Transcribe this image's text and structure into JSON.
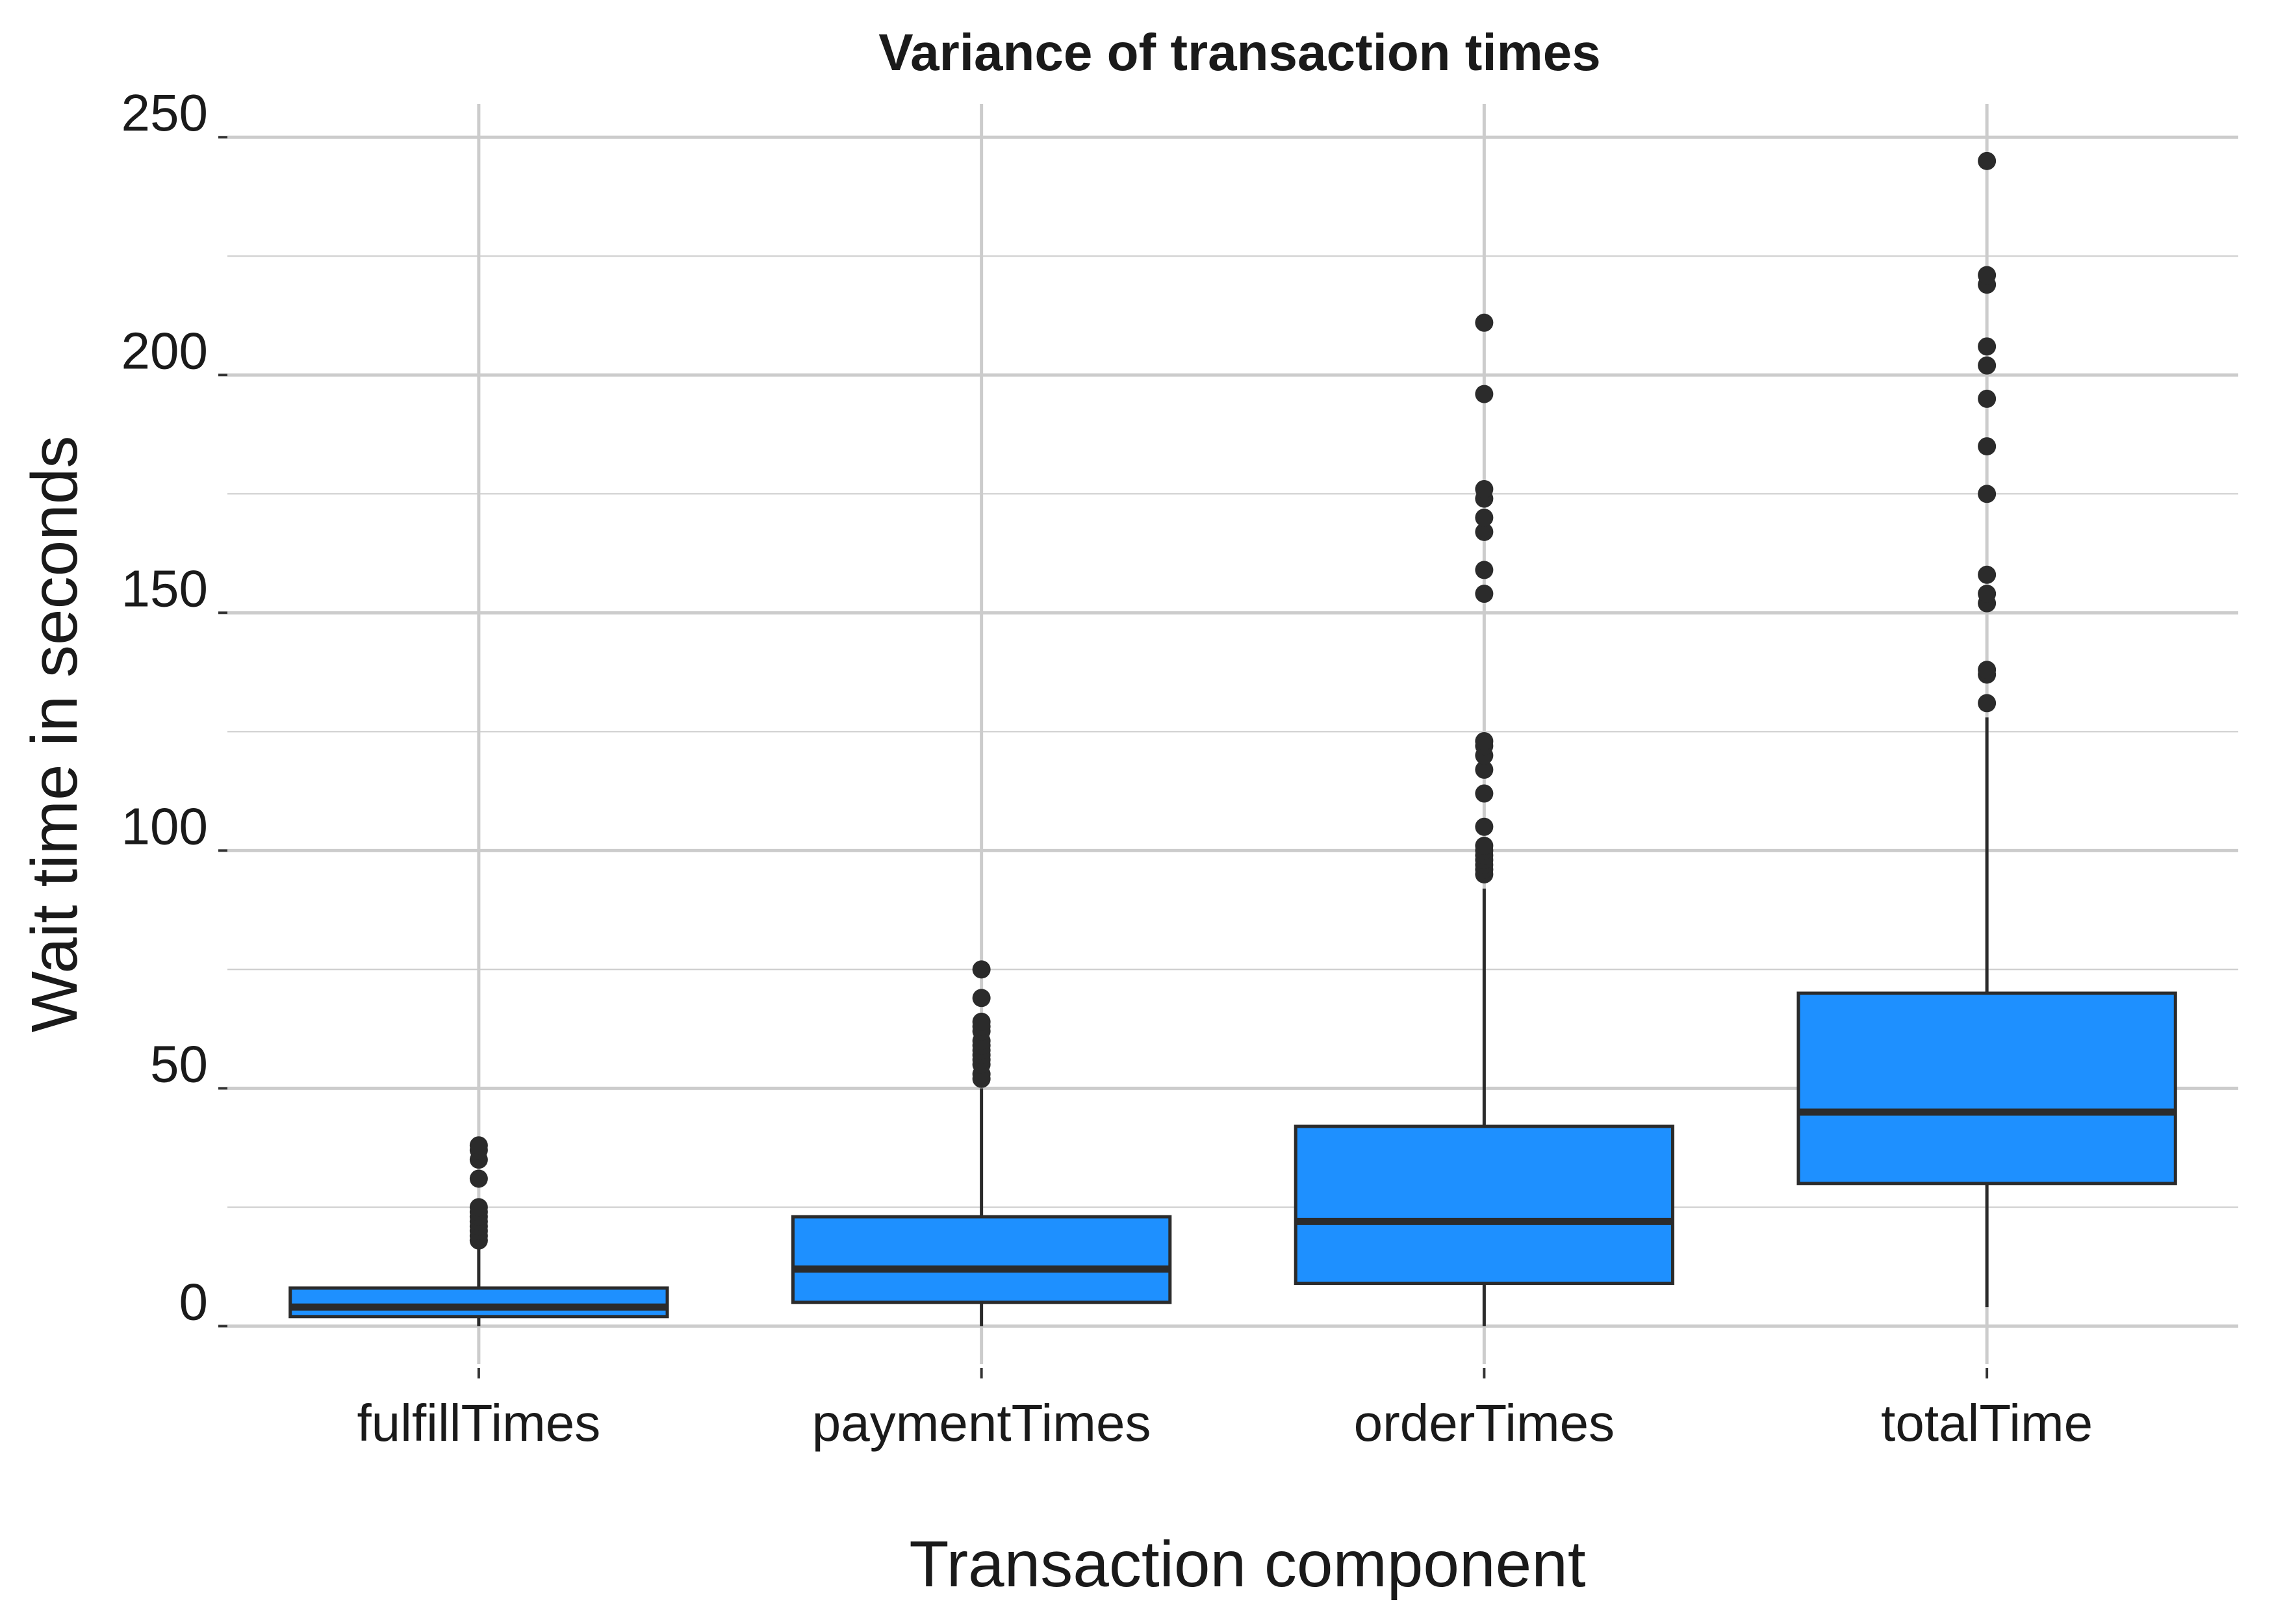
{
  "chart_data": {
    "type": "box",
    "title": "Variance of transaction times",
    "xlabel": "Transaction component",
    "ylabel": "Wait time in seconds",
    "categories": [
      "fulfillTimes",
      "paymentTimes",
      "orderTimes",
      "totalTime"
    ],
    "ylim": [
      -8,
      257
    ],
    "yticks": [
      0,
      50,
      100,
      150,
      200,
      250
    ],
    "grid": true,
    "fill_color": "#1E90FF",
    "line_color": "#2b2b2b",
    "grid_color": "#cccccc",
    "boxes": [
      {
        "name": "fulfillTimes",
        "whisker_low": 0,
        "q1": 2,
        "median": 4,
        "q3": 8,
        "whisker_high": 17,
        "outliers": [
          18,
          19,
          20,
          21,
          22,
          23,
          24,
          25,
          31,
          35,
          37,
          38
        ]
      },
      {
        "name": "paymentTimes",
        "whisker_low": 0,
        "q1": 5,
        "median": 12,
        "q3": 23,
        "whisker_high": 50,
        "outliers": [
          52,
          53,
          55,
          56,
          57,
          58,
          59,
          60,
          62,
          63,
          64,
          69,
          75
        ]
      },
      {
        "name": "orderTimes",
        "whisker_low": 0,
        "q1": 9,
        "median": 22,
        "q3": 42,
        "whisker_high": 92,
        "outliers": [
          95,
          96,
          97,
          98,
          99,
          100,
          101,
          105,
          112,
          117,
          120,
          122,
          123,
          154,
          159,
          167,
          170,
          174,
          176,
          196,
          211
        ]
      },
      {
        "name": "totalTime",
        "whisker_low": 4,
        "q1": 30,
        "median": 45,
        "q3": 70,
        "whisker_high": 128,
        "outliers": [
          131,
          137,
          138,
          152,
          154,
          158,
          175,
          185,
          195,
          202,
          206,
          219,
          221,
          245
        ]
      }
    ]
  }
}
